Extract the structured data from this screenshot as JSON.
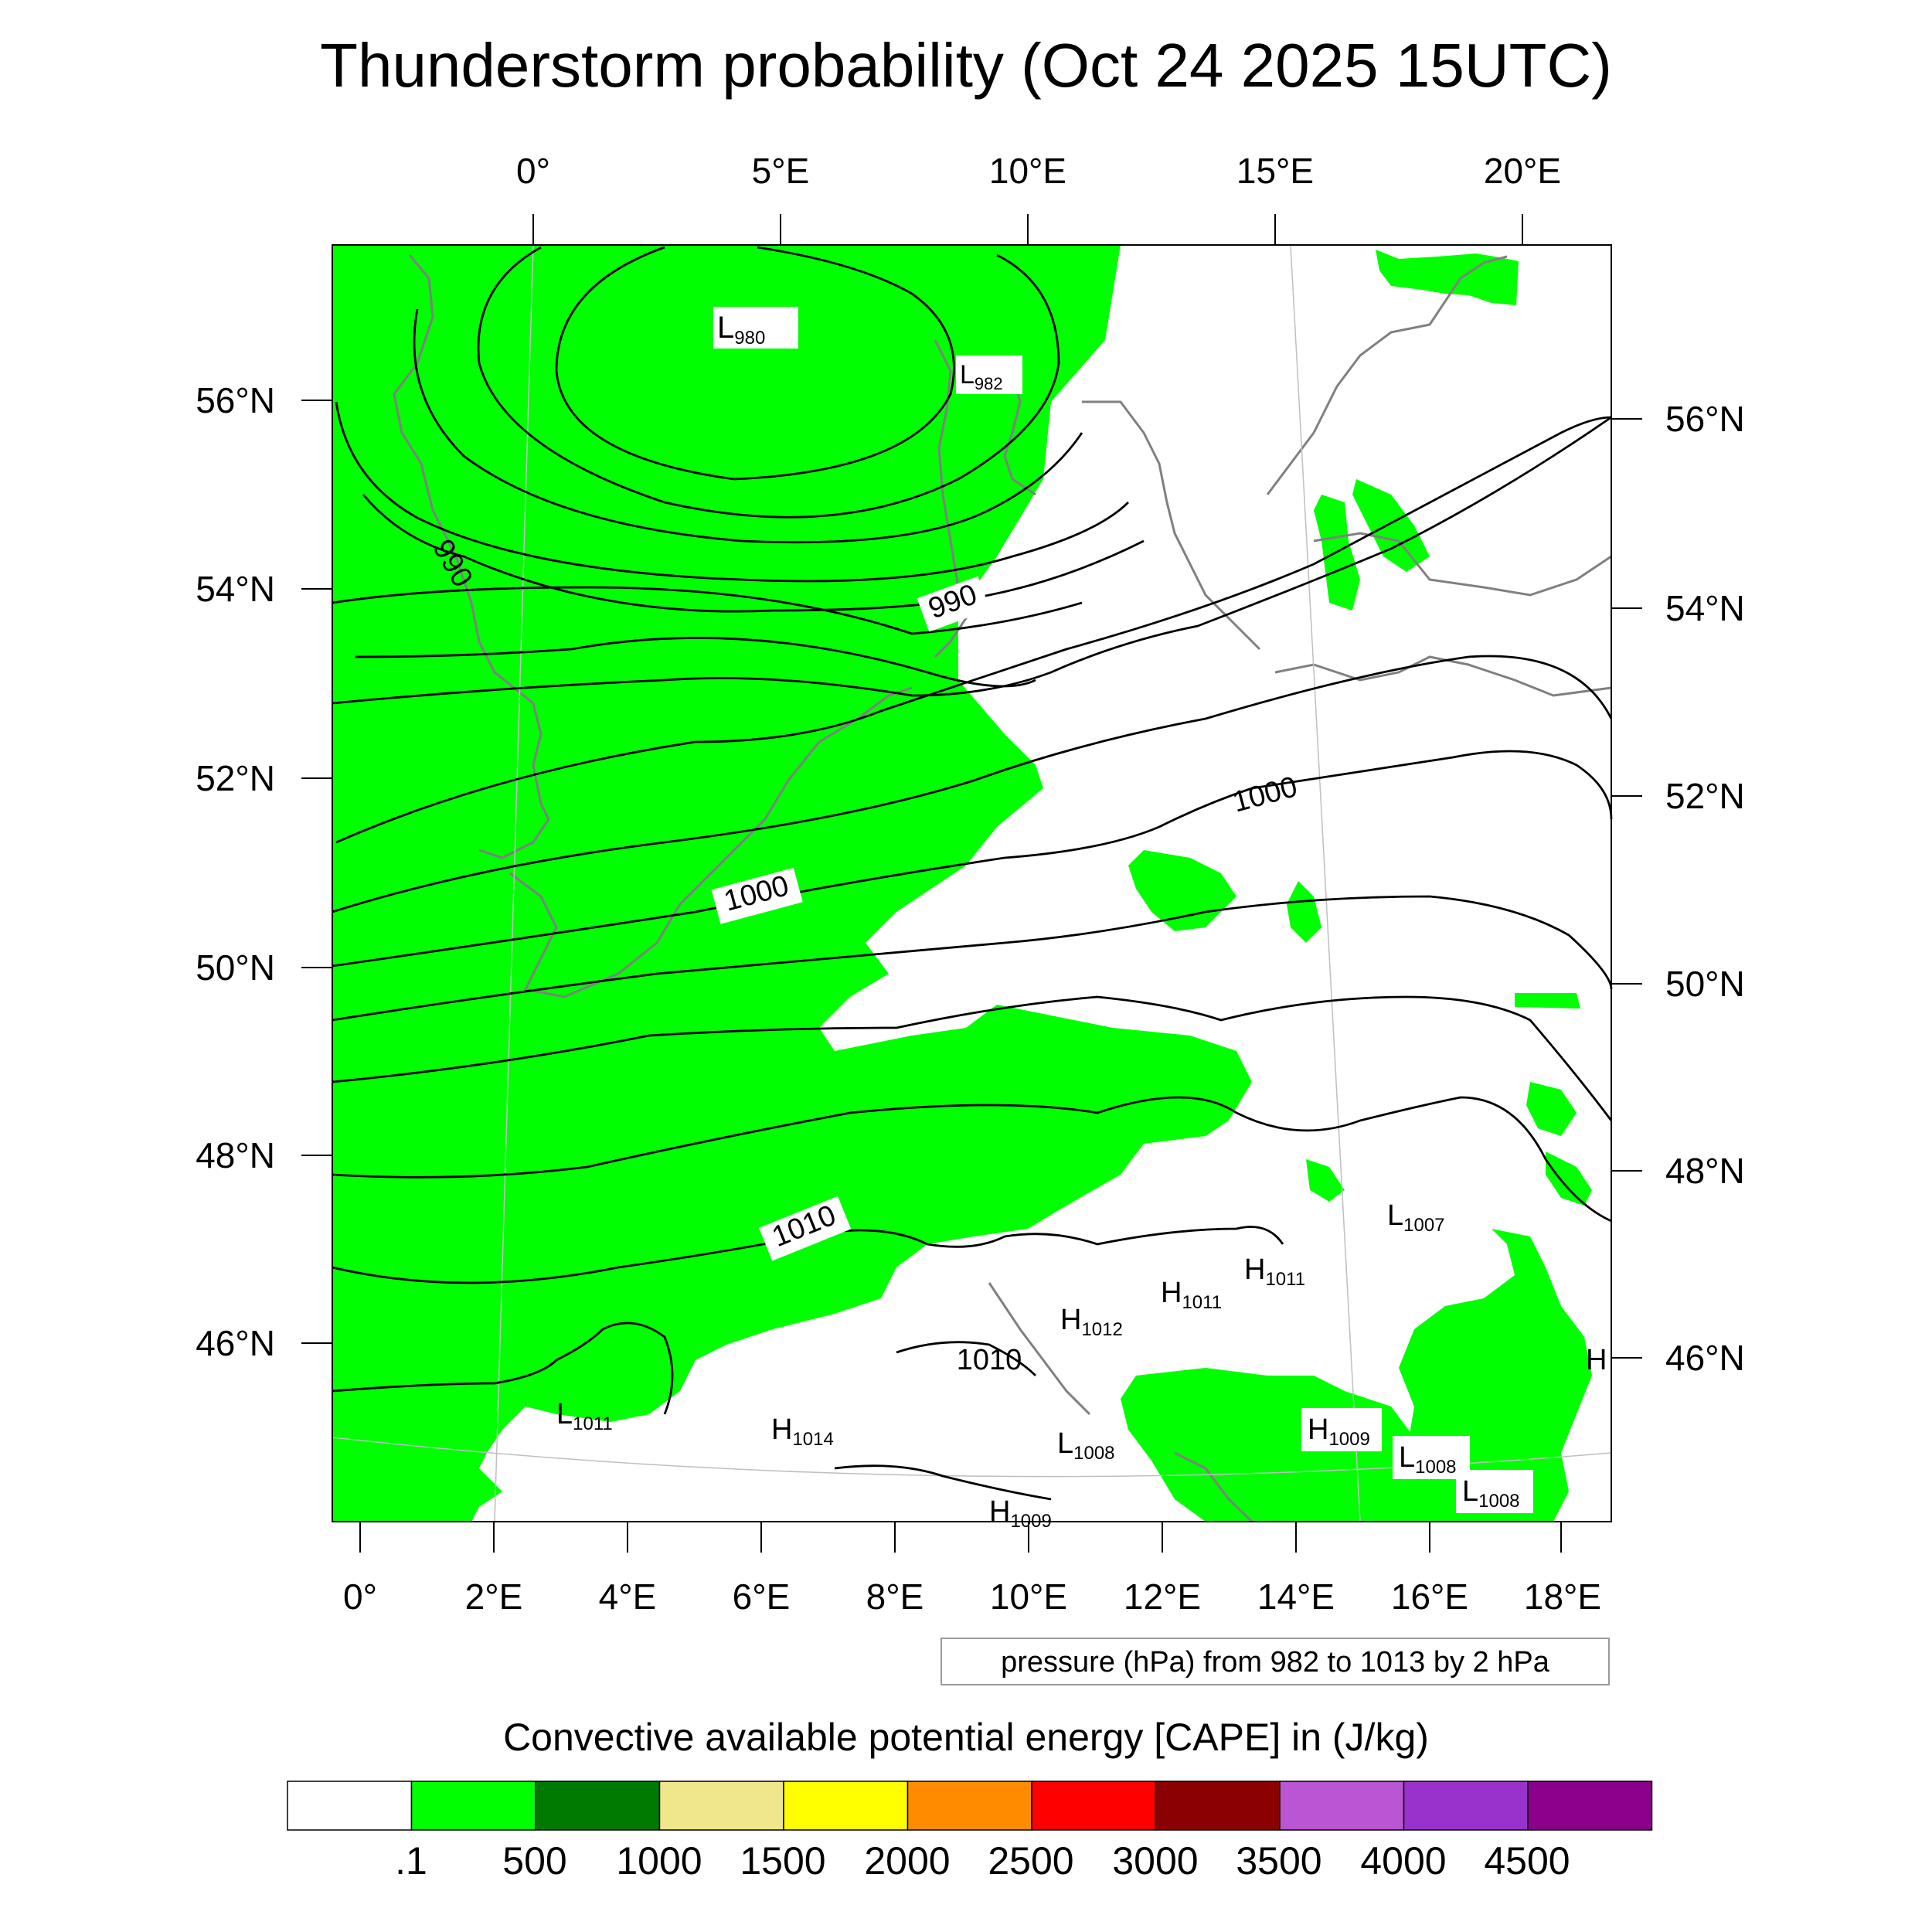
{
  "title": "Thunderstorm probability (Oct 24 2025 15UTC)",
  "top_lon_labels": [
    "0°",
    "5°E",
    "10°E",
    "15°E",
    "20°E"
  ],
  "bottom_lon_labels": [
    "0°",
    "2°E",
    "4°E",
    "6°E",
    "8°E",
    "10°E",
    "12°E",
    "14°E",
    "16°E",
    "18°E"
  ],
  "left_lat_labels": [
    "56°N",
    "54°N",
    "52°N",
    "50°N",
    "48°N",
    "46°N"
  ],
  "right_lat_labels": [
    "56°N",
    "54°N",
    "52°N",
    "50°N",
    "48°N",
    "46°N"
  ],
  "contour_info": "pressure (hPa) from 982 to 1013 by 2 hPa",
  "colorbar": {
    "title": "Convective available potential energy [CAPE] in (J/kg)",
    "colors": [
      "#ffffff",
      "#00ff00",
      "#007a00",
      "#f0e68c",
      "#ffff00",
      "#ff8c00",
      "#ff0000",
      "#8b0000",
      "#ba55d3",
      "#9932cc",
      "#8b008b"
    ],
    "labels": [
      ".1",
      "500",
      "1000",
      "1500",
      "2000",
      "2500",
      "3000",
      "3500",
      "4000",
      "4500"
    ]
  },
  "contour_labels": [
    "990",
    "990",
    "1000",
    "1000",
    "1010",
    "1010"
  ],
  "pressure_centers": [
    {
      "type": "L",
      "value": "980"
    },
    {
      "type": "L",
      "value": "982"
    },
    {
      "type": "L",
      "value": "1007"
    },
    {
      "type": "H",
      "value": "1011"
    },
    {
      "type": "H",
      "value": "1011"
    },
    {
      "type": "H",
      "value": "1012"
    },
    {
      "type": "L",
      "value": "1011"
    },
    {
      "type": "H",
      "value": "1014"
    },
    {
      "type": "L",
      "value": "1008"
    },
    {
      "type": "H",
      "value": "1009"
    },
    {
      "type": "L",
      "value": "1008"
    },
    {
      "type": "L",
      "value": "1008"
    },
    {
      "type": "H",
      "value": "1009"
    },
    {
      "type": "H",
      "value": ""
    }
  ]
}
